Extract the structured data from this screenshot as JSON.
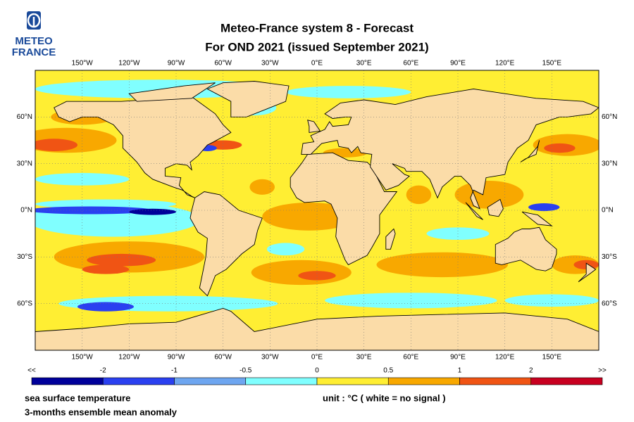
{
  "logo": {
    "line1": "METEO",
    "line2": "FRANCE"
  },
  "title": {
    "line1": "Meteo-France system 8  -  Forecast",
    "line2": "For OND 2021      (issued September 2021)"
  },
  "map": {
    "lon_labels": [
      "150°W",
      "120°W",
      "90°W",
      "60°W",
      "30°W",
      "0°E",
      "30°E",
      "60°E",
      "90°E",
      "120°E",
      "150°E"
    ],
    "lat_labels": [
      "60°N",
      "30°N",
      "0°N",
      "30°S",
      "60°S"
    ]
  },
  "colorbar": {
    "labels": [
      "<<",
      "-2",
      "-1",
      "-0.5",
      "0",
      "0.5",
      "1",
      "2",
      ">>"
    ],
    "colors": [
      "#00009a",
      "#2a40f0",
      "#6ea6f0",
      "#80ffff",
      "#ffee33",
      "#f8a800",
      "#f05414",
      "#c80020"
    ]
  },
  "footer": {
    "variable": "sea surface temperature",
    "description": "3-months ensemble mean anomaly",
    "unit": "unit : °C  ( white = no signal )"
  }
}
